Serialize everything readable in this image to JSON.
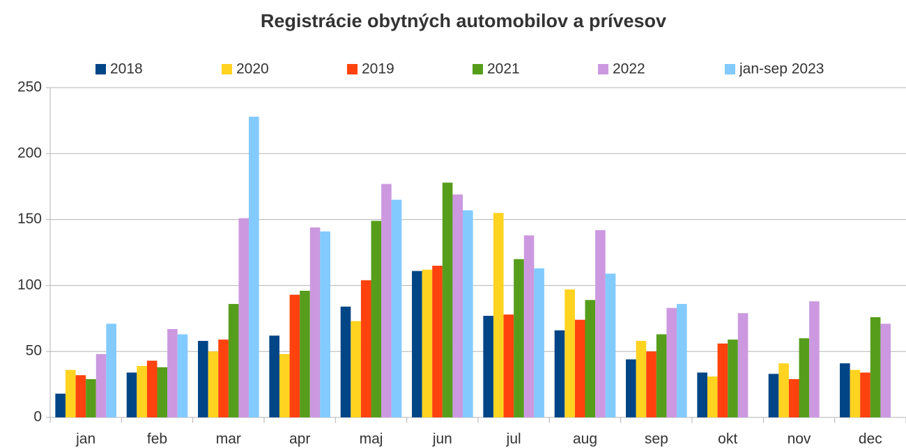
{
  "chart_data": {
    "type": "bar",
    "title": "Registrácie obytných automobilov a prívesov",
    "categories": [
      "jan",
      "feb",
      "mar",
      "apr",
      "maj",
      "jun",
      "jul",
      "aug",
      "sep",
      "okt",
      "nov",
      "dec"
    ],
    "series": [
      {
        "name": "2018",
        "color": "#004586",
        "values": [
          18,
          34,
          58,
          62,
          84,
          111,
          77,
          66,
          44,
          34,
          33,
          41
        ]
      },
      {
        "name": "2020",
        "color": "#ffd320",
        "values": [
          36,
          39,
          50,
          48,
          73,
          112,
          155,
          97,
          58,
          31,
          41,
          36
        ]
      },
      {
        "name": "2019",
        "color": "#ff420e",
        "values": [
          32,
          43,
          59,
          93,
          104,
          115,
          78,
          74,
          50,
          56,
          29,
          34
        ]
      },
      {
        "name": "2021",
        "color": "#579d1c",
        "values": [
          29,
          38,
          86,
          96,
          149,
          178,
          120,
          89,
          63,
          59,
          60,
          76
        ]
      },
      {
        "name": "2022",
        "color": "#cc99e0",
        "values": [
          48,
          67,
          151,
          144,
          177,
          169,
          138,
          142,
          83,
          79,
          88,
          71
        ]
      },
      {
        "name": "jan-sep 2023",
        "color": "#83caff",
        "values": [
          71,
          63,
          228,
          141,
          165,
          157,
          113,
          109,
          86,
          null,
          null,
          null
        ]
      }
    ],
    "ylim": [
      0,
      250
    ],
    "yticks": [
      0,
      50,
      100,
      150,
      200,
      250
    ],
    "grid": true,
    "legend": "top"
  }
}
